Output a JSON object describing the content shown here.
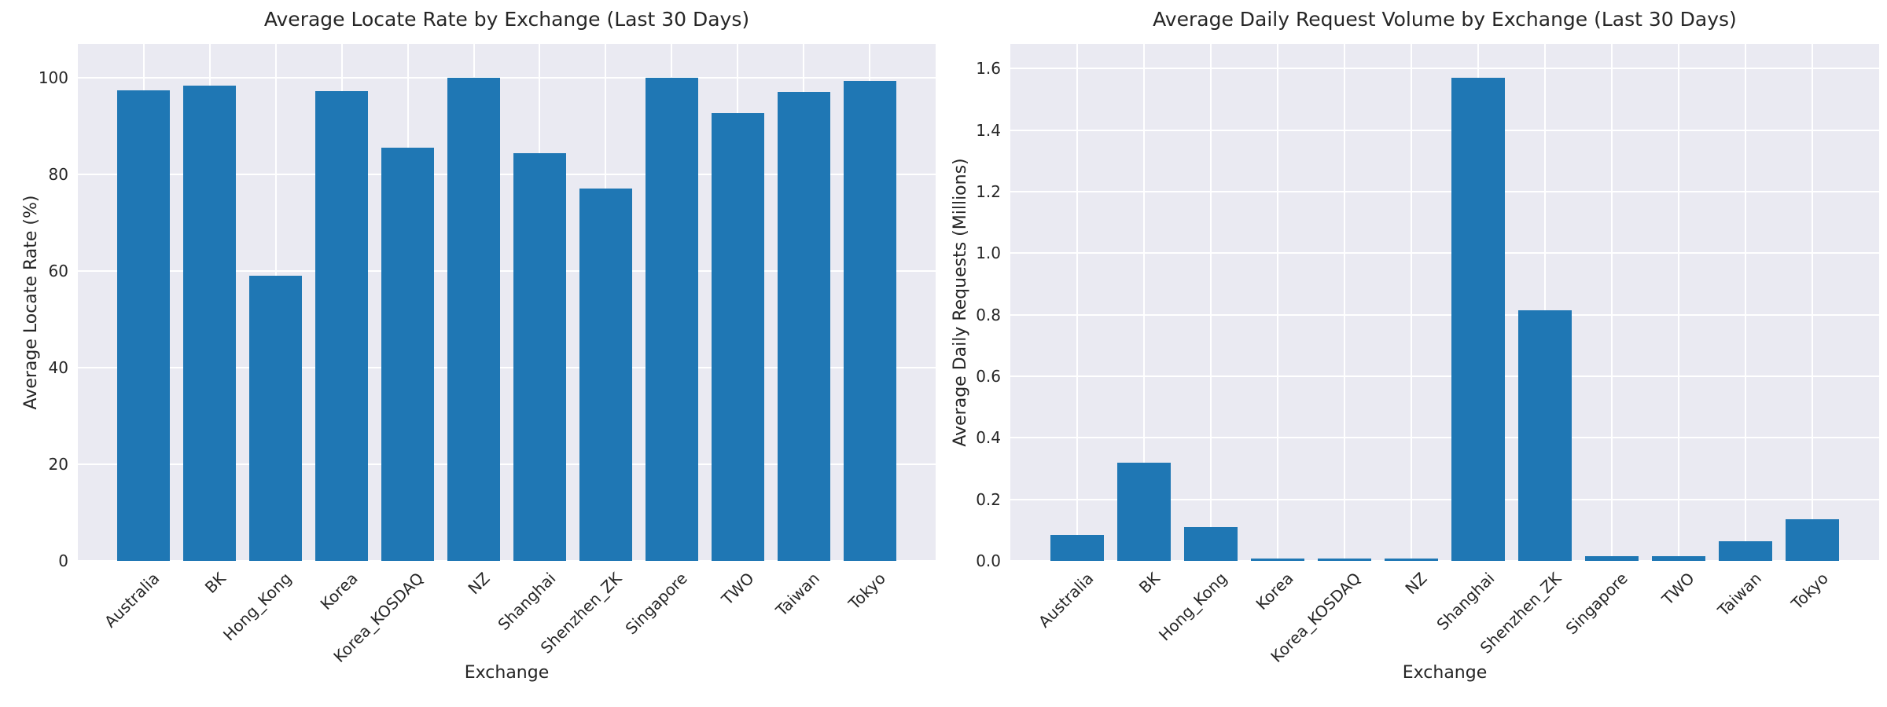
{
  "style": {
    "figure_background": "#ffffff",
    "axes_background": "#eaeaf2",
    "grid_color": "#ffffff",
    "bar_color": "#1f77b4",
    "text_color": "#262626"
  },
  "chart_data": [
    {
      "type": "bar",
      "title": "Average Locate Rate by Exchange (Last 30 Days)",
      "xlabel": "Exchange",
      "ylabel": "Average Locate Rate (%)",
      "categories": [
        "Australia",
        "BK",
        "Hong_Kong",
        "Korea",
        "Korea_KOSDAQ",
        "NZ",
        "Shanghai",
        "Shenzhen_ZK",
        "Singapore",
        "TWO",
        "Taiwan",
        "Tokyo"
      ],
      "values": [
        97.4,
        98.4,
        59.0,
        97.2,
        85.5,
        100.0,
        84.4,
        77.0,
        100.0,
        92.7,
        97.1,
        99.4
      ],
      "ylim": [
        0,
        107
      ],
      "yticks": [
        0,
        20,
        40,
        60,
        80,
        100
      ],
      "ytick_labels": [
        "0",
        "20",
        "40",
        "60",
        "80",
        "100"
      ],
      "xtick_rotation": 45,
      "grid": true,
      "legend": null
    },
    {
      "type": "bar",
      "title": "Average Daily Request Volume by Exchange (Last 30 Days)",
      "xlabel": "Exchange",
      "ylabel": "Average Daily Requests (Millions)",
      "categories": [
        "Australia",
        "BK",
        "Hong_Kong",
        "Korea",
        "Korea_KOSDAQ",
        "NZ",
        "Shanghai",
        "Shenzhen_ZK",
        "Singapore",
        "TWO",
        "Taiwan",
        "Tokyo"
      ],
      "values": [
        0.085,
        0.32,
        0.11,
        0.007,
        0.007,
        0.007,
        1.57,
        0.815,
        0.015,
        0.015,
        0.065,
        0.135
      ],
      "ylim": [
        0,
        1.68
      ],
      "yticks": [
        0.0,
        0.2,
        0.4,
        0.6,
        0.8,
        1.0,
        1.2,
        1.4,
        1.6
      ],
      "ytick_labels": [
        "0.0",
        "0.2",
        "0.4",
        "0.6",
        "0.8",
        "1.0",
        "1.2",
        "1.4",
        "1.6"
      ],
      "xtick_rotation": 45,
      "grid": true,
      "legend": null
    }
  ]
}
